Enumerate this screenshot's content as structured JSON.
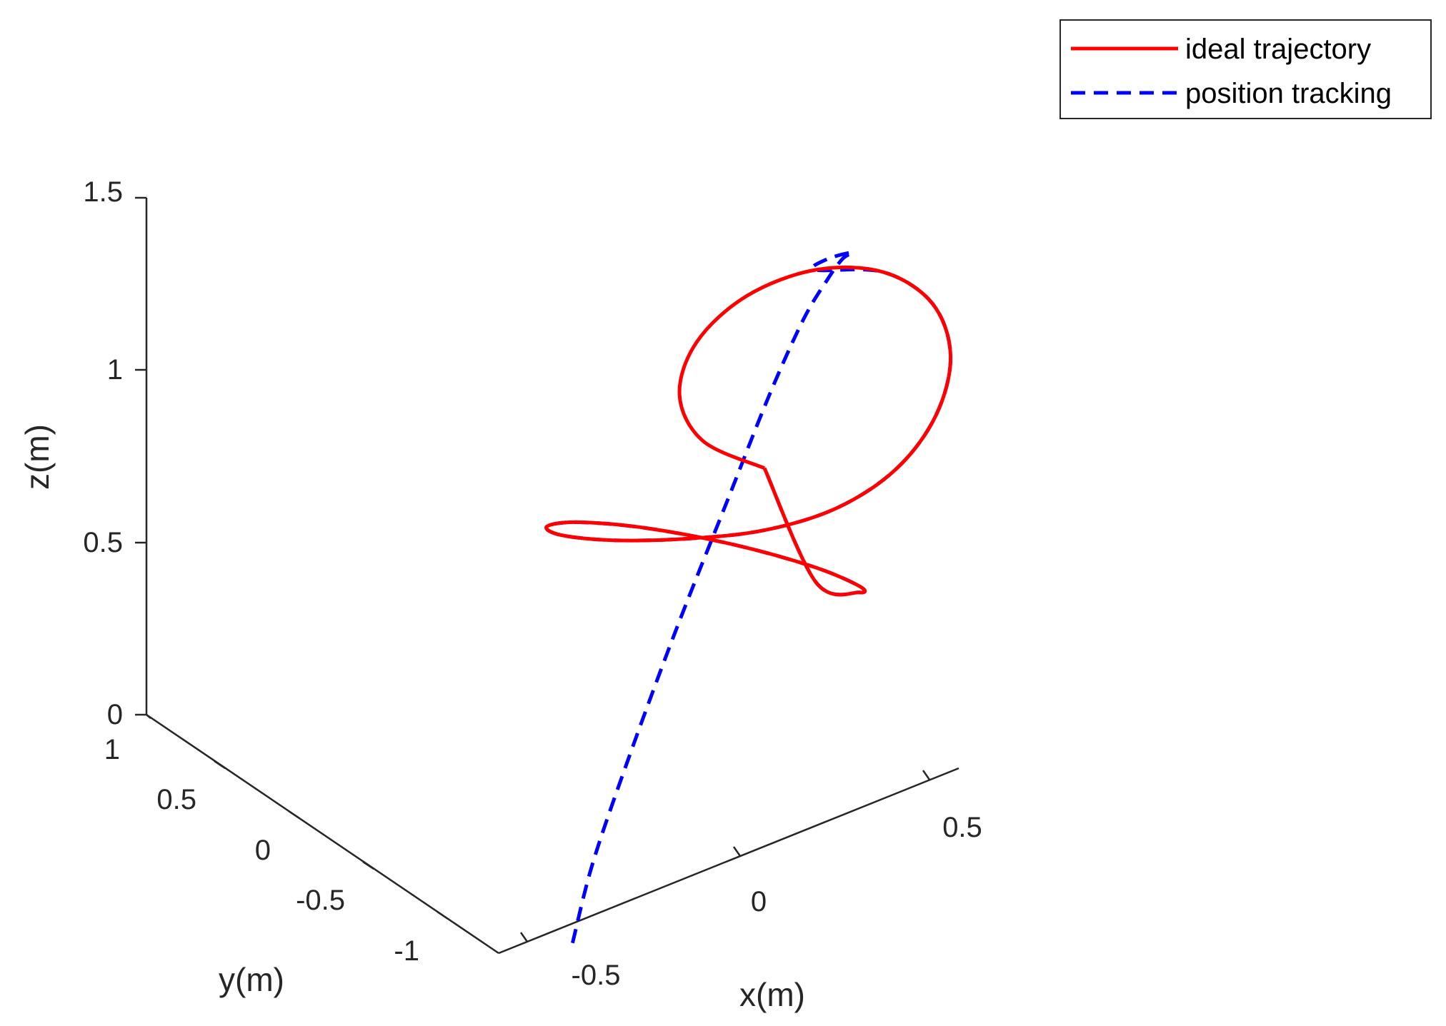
{
  "chart_data": {
    "type": "line3d",
    "xlabel": "x(m)",
    "ylabel": "y(m)",
    "zlabel": "z(m)",
    "x_ticks": [
      "-0.5",
      "0",
      "0.5"
    ],
    "y_ticks": [
      "-1",
      "-0.5",
      "0",
      "0.5",
      "1"
    ],
    "z_ticks": [
      "0",
      "0.5",
      "1",
      "1.5"
    ],
    "xlim": [
      -0.8,
      0.8
    ],
    "ylim": [
      -1.2,
      1.0
    ],
    "zlim": [
      0,
      1.5
    ],
    "grid": false,
    "legend_position": "top-right",
    "colors": {
      "ideal": "#ff0000",
      "tracking": "#0000ff",
      "axis": "#262626"
    },
    "series": [
      {
        "name": "ideal trajectory",
        "style": "solid",
        "color": "#ff0000",
        "points": [
          [
            0.0,
            0.0,
            1.1
          ],
          [
            -0.179,
            -0.09,
            1.239
          ],
          [
            -0.31,
            -0.298,
            1.375
          ],
          [
            -0.357,
            -0.545,
            1.48
          ],
          [
            -0.31,
            -0.75,
            1.531
          ],
          [
            -0.179,
            -0.846,
            1.515
          ],
          [
            0.0,
            -0.8,
            1.435
          ],
          [
            0.179,
            -0.626,
            1.309
          ],
          [
            0.31,
            -0.383,
            1.166
          ],
          [
            0.357,
            -0.155,
            1.036
          ],
          [
            0.31,
            -0.018,
            0.942
          ],
          [
            0.179,
            0.016,
            0.902
          ],
          [
            0.0,
            0.0,
            0.92
          ],
          [
            -0.179,
            0.019,
            0.988
          ],
          [
            -0.31,
            0.149,
            1.085
          ],
          [
            -0.357,
            0.366,
            1.186
          ],
          [
            -0.31,
            0.595,
            1.255
          ],
          [
            -0.179,
            0.76,
            1.252
          ],
          [
            0.0,
            0.8,
            1.16
          ],
          [
            0.179,
            0.708,
            0.998
          ],
          [
            0.31,
            0.535,
            0.819
          ],
          [
            0.357,
            0.36,
            0.689
          ],
          [
            0.31,
            0.233,
            0.657
          ],
          [
            0.179,
            0.157,
            0.729
          ],
          [
            0.0,
            0.0,
            1.1
          ]
        ]
      },
      {
        "name": "position tracking",
        "style": "dashed",
        "color": "#0000ff",
        "start_point": [
          -0.3,
          0.45,
          0.0
        ],
        "points": [
          [
            -0.3,
            0.45,
            0.0
          ],
          [
            -0.27,
            0.4,
            0.2
          ],
          [
            -0.22,
            0.3,
            0.45
          ],
          [
            -0.15,
            0.18,
            0.75
          ],
          [
            -0.07,
            0.06,
            1.05
          ],
          [
            0.0,
            -0.03,
            1.3
          ],
          [
            0.05,
            -0.12,
            1.47
          ],
          [
            0.08,
            -0.2,
            1.55
          ],
          [
            0.08,
            -0.3,
            1.58
          ],
          [
            0.05,
            -0.45,
            1.57
          ],
          [
            -0.1,
            -0.7,
            1.55
          ],
          [
            -0.179,
            -0.846,
            1.515
          ],
          [
            0.0,
            -0.8,
            1.435
          ],
          [
            0.179,
            -0.626,
            1.309
          ],
          [
            0.31,
            -0.383,
            1.166
          ],
          [
            0.357,
            -0.155,
            1.036
          ],
          [
            0.31,
            -0.018,
            0.942
          ],
          [
            0.179,
            0.016,
            0.902
          ],
          [
            0.0,
            0.0,
            0.92
          ],
          [
            -0.179,
            0.019,
            0.988
          ],
          [
            -0.31,
            0.149,
            1.085
          ],
          [
            -0.357,
            0.366,
            1.186
          ],
          [
            -0.31,
            0.595,
            1.255
          ],
          [
            -0.179,
            0.76,
            1.252
          ],
          [
            0.0,
            0.8,
            1.16
          ],
          [
            0.179,
            0.708,
            0.998
          ],
          [
            0.31,
            0.535,
            0.819
          ],
          [
            0.357,
            0.36,
            0.689
          ],
          [
            0.31,
            0.233,
            0.657
          ],
          [
            0.179,
            0.157,
            0.729
          ],
          [
            0.0,
            0.0,
            1.1
          ]
        ]
      }
    ]
  }
}
